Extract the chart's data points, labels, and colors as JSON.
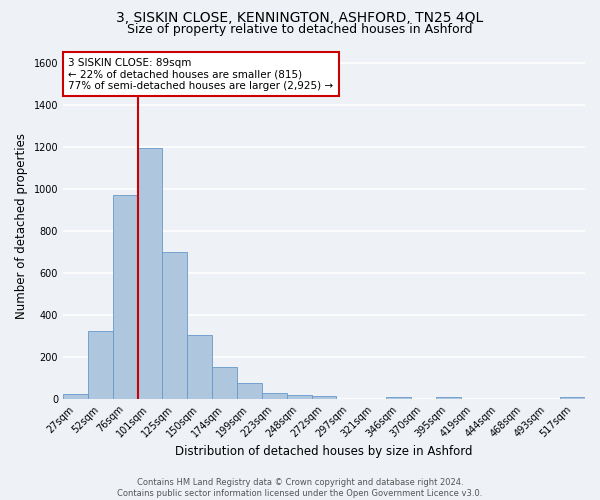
{
  "title": "3, SISKIN CLOSE, KENNINGTON, ASHFORD, TN25 4QL",
  "subtitle": "Size of property relative to detached houses in Ashford",
  "xlabel": "Distribution of detached houses by size in Ashford",
  "ylabel": "Number of detached properties",
  "bar_labels": [
    "27sqm",
    "52sqm",
    "76sqm",
    "101sqm",
    "125sqm",
    "150sqm",
    "174sqm",
    "199sqm",
    "223sqm",
    "248sqm",
    "272sqm",
    "297sqm",
    "321sqm",
    "346sqm",
    "370sqm",
    "395sqm",
    "419sqm",
    "444sqm",
    "468sqm",
    "493sqm",
    "517sqm"
  ],
  "bar_values": [
    25,
    325,
    970,
    1195,
    700,
    305,
    155,
    75,
    30,
    20,
    13,
    0,
    0,
    10,
    0,
    12,
    0,
    0,
    0,
    0,
    10
  ],
  "bar_color": "#aec6de",
  "bar_edge_color": "#6699cc",
  "vline_x": 2.5,
  "vline_color": "#cc0000",
  "annotation_text": "3 SISKIN CLOSE: 89sqm\n← 22% of detached houses are smaller (815)\n77% of semi-detached houses are larger (2,925) →",
  "annotation_box_color": "#ffffff",
  "annotation_box_edge": "#cc0000",
  "ylim": [
    0,
    1650
  ],
  "yticks": [
    0,
    200,
    400,
    600,
    800,
    1000,
    1200,
    1400,
    1600
  ],
  "footer": "Contains HM Land Registry data © Crown copyright and database right 2024.\nContains public sector information licensed under the Open Government Licence v3.0.",
  "bg_color": "#eef2f7",
  "grid_color": "#ffffff",
  "title_fontsize": 10,
  "subtitle_fontsize": 9,
  "xlabel_fontsize": 8.5,
  "ylabel_fontsize": 8.5,
  "tick_fontsize": 7,
  "footer_fontsize": 6,
  "ann_fontsize": 7.5
}
